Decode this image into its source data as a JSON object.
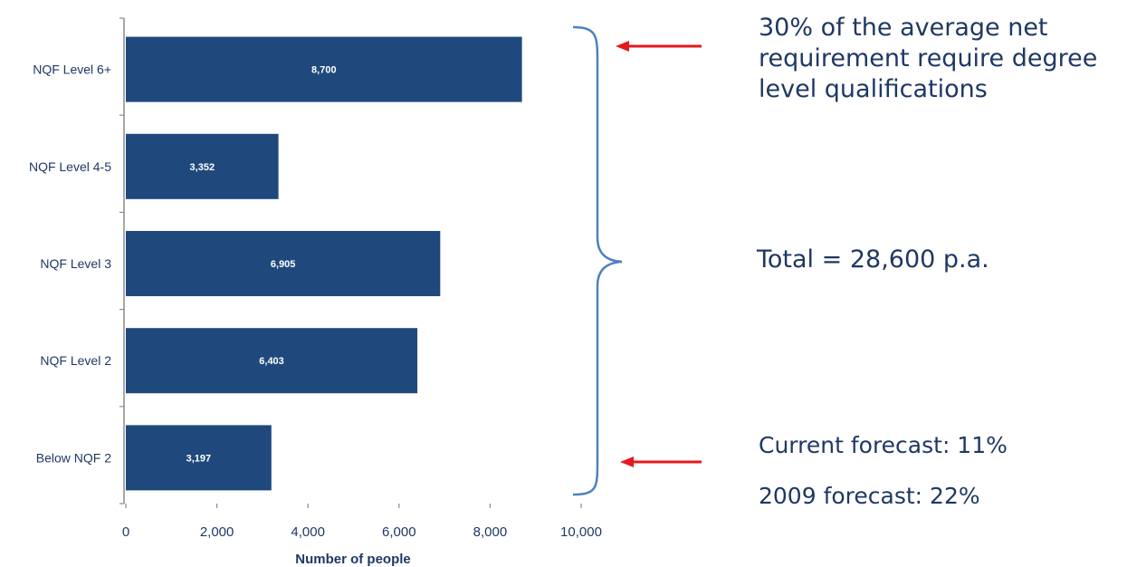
{
  "chart_data": {
    "type": "bar",
    "orientation": "horizontal",
    "categories": [
      "NQF Level 6+",
      "NQF Level 4-5",
      "NQF Level 3",
      "NQF Level 2",
      "Below NQF 2"
    ],
    "values": [
      8700,
      3352,
      6905,
      6403,
      3197
    ],
    "data_labels": [
      "8,700",
      "3,352",
      "6,905",
      "6,403",
      "3,197"
    ],
    "xlabel": "Number of people",
    "xlim": [
      0,
      10000
    ],
    "xticks": [
      0,
      2000,
      4000,
      6000,
      8000,
      10000
    ],
    "xtick_labels": [
      "0",
      "2,000",
      "4,000",
      "6,000",
      "8,000",
      "10,000"
    ],
    "grid": false,
    "colors": {
      "bar": "#1f497d",
      "bar_label": "#ffffff",
      "axis": "#8c8c8c",
      "brace": "#4f81bd",
      "arrow": "#e31a1c",
      "annotation_text": "#1f3864"
    }
  },
  "annotations": {
    "top_lines": [
      "30% of the average net",
      "requirement require degree",
      "level qualifications"
    ],
    "total": "Total = 28,600 p.a.",
    "current_forecast": "Current forecast: 11%",
    "forecast_2009": "2009 forecast: 22%"
  }
}
